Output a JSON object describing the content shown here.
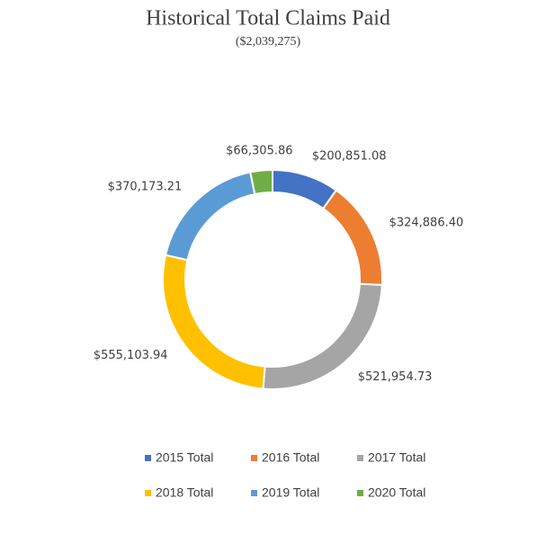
{
  "chart_data": {
    "type": "donut",
    "title": "Historical Total Claims Paid",
    "subtitle": "($2,039,275)",
    "categories": [
      "2015 Total",
      "2016 Total",
      "2017 Total",
      "2018 Total",
      "2019 Total",
      "2020 Total"
    ],
    "values": [
      200851.08,
      324886.4,
      521954.73,
      555103.94,
      370173.21,
      66305.86
    ],
    "value_labels": [
      "$200,851.08",
      "$324,886.40",
      "$521,954.73",
      "$555,103.94",
      "$370,173.21",
      "$66,305.86"
    ],
    "colors": [
      "#4472c4",
      "#ed7d31",
      "#a5a5a5",
      "#ffc000",
      "#5b9bd5",
      "#70ad47"
    ],
    "legend": "bottom"
  }
}
